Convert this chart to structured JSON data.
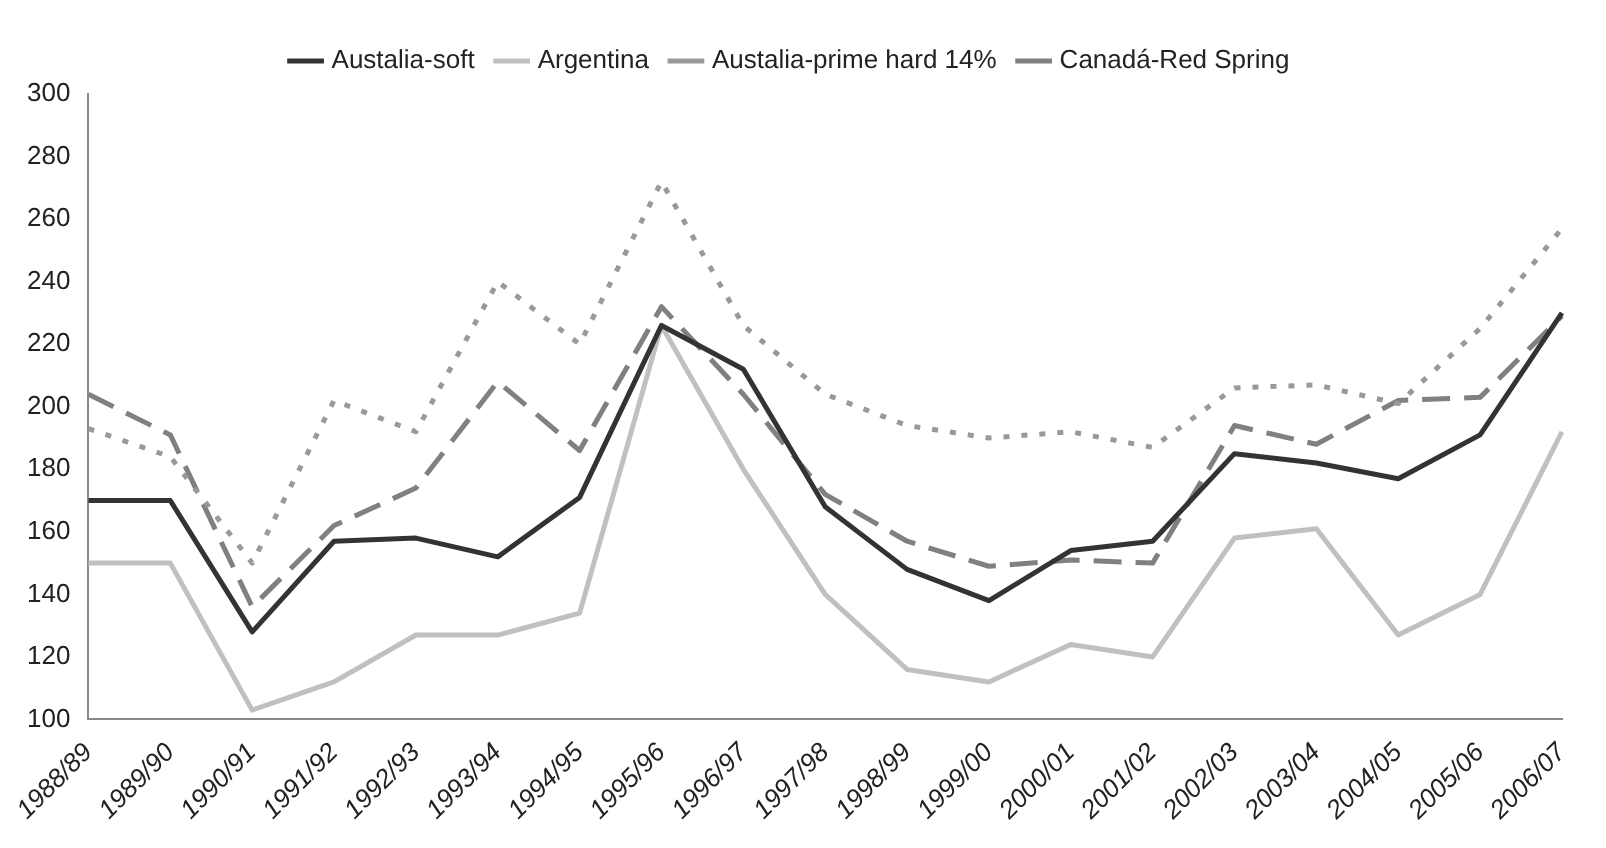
{
  "chart_data": {
    "type": "line",
    "categories": [
      "1988/89",
      "1989/90",
      "1990/91",
      "1991/92",
      "1992/93",
      "1993/94",
      "1994/95",
      "1995/96",
      "1996/97",
      "1997/98",
      "1998/99",
      "1999/00",
      "2000/01",
      "2001/02",
      "2002/03",
      "2003/04",
      "2004/05",
      "2005/06",
      "2006/07"
    ],
    "series": [
      {
        "name": "Austalia-soft",
        "color": "#333333",
        "line_style": "solid",
        "values": [
          170,
          170,
          128,
          157,
          158,
          152,
          171,
          226,
          212,
          168,
          148,
          138,
          154,
          157,
          185,
          182,
          177,
          191,
          230
        ]
      },
      {
        "name": "Argentina",
        "color": "#c0c0c0",
        "line_style": "solid",
        "values": [
          150,
          150,
          103,
          112,
          127,
          127,
          134,
          226,
          180,
          140,
          116,
          112,
          124,
          120,
          158,
          161,
          127,
          140,
          192
        ]
      },
      {
        "name": "Austalia-prime hard 14%",
        "color": "#999999",
        "line_style": "dotted",
        "values": [
          193,
          184,
          150,
          202,
          192,
          240,
          220,
          272,
          226,
          204,
          194,
          190,
          192,
          187,
          206,
          207,
          201,
          225,
          257
        ]
      },
      {
        "name": "Canadá-Red Spring",
        "color": "#808080",
        "line_style": "dashed",
        "values": [
          204,
          191,
          136,
          162,
          174,
          208,
          186,
          232,
          204,
          172,
          157,
          149,
          151,
          150,
          194,
          188,
          202,
          203,
          229
        ]
      }
    ],
    "ylim": [
      100,
      300
    ],
    "yticks": [
      100,
      120,
      140,
      160,
      180,
      200,
      220,
      240,
      260,
      280,
      300
    ],
    "grid": false,
    "legend": "top",
    "marker": "none"
  }
}
